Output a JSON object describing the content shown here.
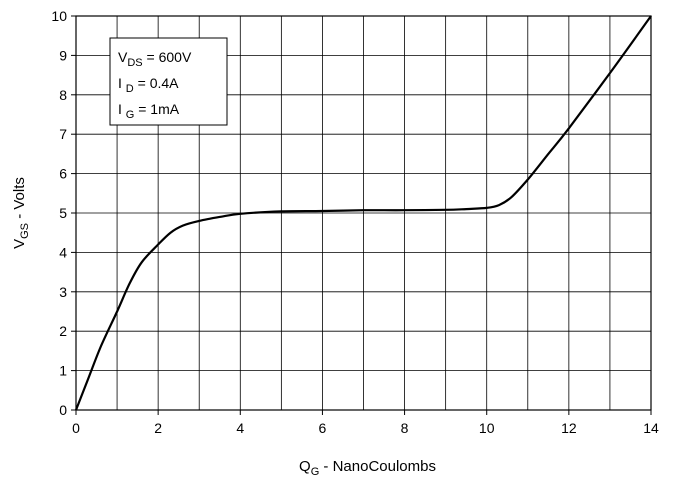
{
  "chart_data": {
    "type": "line",
    "xlabel": {
      "main": "Q",
      "sub": "G",
      "rest": " - NanoCoulombs"
    },
    "ylabel": {
      "main": "V",
      "sub": "GS",
      "rest": " - Volts"
    },
    "xlim": [
      0,
      14
    ],
    "ylim": [
      0,
      10
    ],
    "x_ticks": [
      0,
      2,
      4,
      6,
      8,
      10,
      12,
      14
    ],
    "y_ticks": [
      0,
      1,
      2,
      3,
      4,
      5,
      6,
      7,
      8,
      9,
      10
    ],
    "grid": true,
    "grid_x_step": 1,
    "grid_y_step": 1,
    "legend_position": "top-left",
    "conditions": [
      {
        "main": "V",
        "sub": "DS",
        "rest": " = 600V"
      },
      {
        "main": "I ",
        "sub": "D",
        "rest": " = 0.4A"
      },
      {
        "main": "I ",
        "sub": "G",
        "rest": " = 1mA"
      }
    ],
    "series": [
      {
        "color": "#000000",
        "x": [
          0,
          0.3,
          0.6,
          1.0,
          1.3,
          1.6,
          2.0,
          2.3,
          2.6,
          3.0,
          3.5,
          4.0,
          5.0,
          6.0,
          7.0,
          8.0,
          9.0,
          9.5,
          10.0,
          10.3,
          10.6,
          11.0,
          11.5,
          12.0,
          13.0,
          14.0
        ],
        "y": [
          0,
          0.8,
          1.6,
          2.5,
          3.2,
          3.75,
          4.2,
          4.5,
          4.68,
          4.8,
          4.9,
          4.98,
          5.04,
          5.05,
          5.07,
          5.07,
          5.08,
          5.1,
          5.13,
          5.2,
          5.4,
          5.85,
          6.5,
          7.15,
          8.55,
          10.0
        ]
      }
    ]
  }
}
